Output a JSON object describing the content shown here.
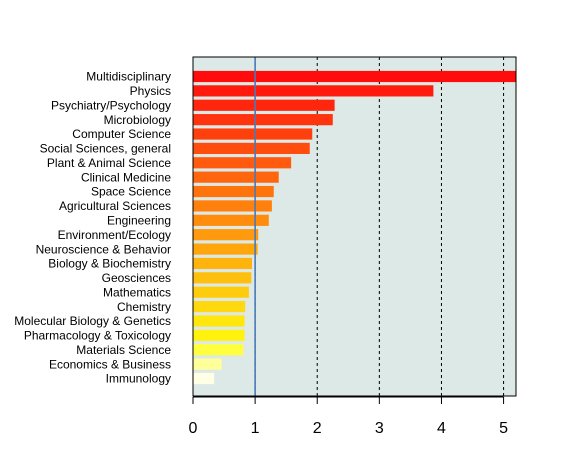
{
  "chart_data": {
    "type": "bar",
    "orientation": "horizontal",
    "title": "",
    "xlabel": "",
    "ylabel": "",
    "categories": [
      "Multidisciplinary",
      "Physics",
      "Psychiatry/Psychology",
      "Microbiology",
      "Computer Science",
      "Social Sciences, general",
      "Plant & Animal Science",
      "Clinical Medicine",
      "Space Science",
      "Agricultural Sciences",
      "Engineering",
      "Environment/Ecology",
      "Neuroscience & Behavior",
      "Biology & Biochemistry",
      "Geosciences",
      "Mathematics",
      "Chemistry",
      "Molecular Biology & Genetics",
      "Pharmacology & Toxicology",
      "Materials Science",
      "Economics & Business",
      "Immunology"
    ],
    "values": [
      5.2,
      3.87,
      2.28,
      2.25,
      1.92,
      1.88,
      1.58,
      1.38,
      1.3,
      1.27,
      1.22,
      1.05,
      1.04,
      0.95,
      0.94,
      0.9,
      0.84,
      0.83,
      0.83,
      0.81,
      0.46,
      0.34
    ],
    "bar_colors": [
      "#ff0d0d",
      "#ff1a0d",
      "#ff260d",
      "#ff330d",
      "#ff400d",
      "#ff4d0d",
      "#ff5a0d",
      "#ff660d",
      "#ff730d",
      "#ff800d",
      "#ff8c0d",
      "#ff990d",
      "#ffa60d",
      "#ffb30d",
      "#ffc00d",
      "#ffcc0d",
      "#ffd90d",
      "#ffe60d",
      "#fff30d",
      "#ffff40",
      "#ffff99",
      "#ffffe6"
    ],
    "xlim": [
      0,
      5.2
    ],
    "xticks": [
      0,
      1,
      2,
      3,
      4,
      5
    ],
    "reference_line": {
      "x": 1,
      "color": "#4a7bb7"
    },
    "panel_background": "#dde9e6",
    "grid": "vertical dotted lines at x ticks"
  }
}
